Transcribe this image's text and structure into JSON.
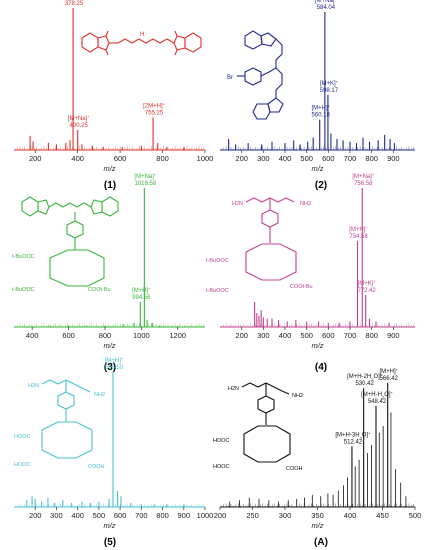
{
  "colors": {
    "p1": "#e0302a",
    "p2": "#1f2a8f",
    "p3": "#39b53a",
    "p4": "#c0418f",
    "p5": "#49c3cf",
    "pA": "#111111"
  },
  "chart_data": [
    {
      "type": "bar",
      "panel_label": "(1)",
      "xlabel": "m/z",
      "xlim": [
        100,
        1000
      ],
      "xticks": [
        "200",
        "400",
        "600",
        "800",
        "1000"
      ],
      "ylim": [
        0,
        100
      ],
      "structure_labels": [],
      "peaks": [
        {
          "x": 378.25,
          "y": 100,
          "label": [
            "[M+H]+",
            "378.25"
          ]
        },
        {
          "x": 400.25,
          "y": 14,
          "label": [
            "[M+Na]+",
            "400.25"
          ]
        },
        {
          "x": 755.25,
          "y": 23,
          "label": [
            "[2M+H]+",
            "755.25"
          ]
        },
        {
          "x": 176,
          "y": 10
        },
        {
          "x": 190,
          "y": 6
        },
        {
          "x": 262,
          "y": 5
        },
        {
          "x": 300,
          "y": 4
        },
        {
          "x": 344,
          "y": 5
        },
        {
          "x": 364,
          "y": 7
        },
        {
          "x": 420,
          "y": 4
        },
        {
          "x": 470,
          "y": 3
        },
        {
          "x": 520,
          "y": 2
        },
        {
          "x": 610,
          "y": 2
        },
        {
          "x": 700,
          "y": 3
        },
        {
          "x": 777,
          "y": 5
        },
        {
          "x": 820,
          "y": 2
        },
        {
          "x": 900,
          "y": 2
        }
      ]
    },
    {
      "type": "bar",
      "panel_label": "(2)",
      "xlabel": "m/z",
      "xlim": [
        100,
        1000
      ],
      "xticks": [
        "200",
        "300",
        "400",
        "500",
        "600",
        "700",
        "800",
        "900"
      ],
      "ylim": [
        0,
        100
      ],
      "structure_labels": [
        "Br"
      ],
      "peaks": [
        {
          "x": 584.04,
          "y": 100,
          "label": [
            "[M+Na]+",
            "584.04"
          ]
        },
        {
          "x": 560.18,
          "y": 22,
          "label": [
            "[M+H]+",
            "560.18"
          ]
        },
        {
          "x": 598.17,
          "y": 40,
          "label": [
            "[M+K]+",
            "598.17"
          ]
        },
        {
          "x": 140,
          "y": 8
        },
        {
          "x": 172,
          "y": 4
        },
        {
          "x": 230,
          "y": 5
        },
        {
          "x": 292,
          "y": 4
        },
        {
          "x": 340,
          "y": 6
        },
        {
          "x": 400,
          "y": 5
        },
        {
          "x": 440,
          "y": 7
        },
        {
          "x": 470,
          "y": 4
        },
        {
          "x": 505,
          "y": 6
        },
        {
          "x": 530,
          "y": 9
        },
        {
          "x": 612,
          "y": 12
        },
        {
          "x": 640,
          "y": 8
        },
        {
          "x": 668,
          "y": 7
        },
        {
          "x": 700,
          "y": 6
        },
        {
          "x": 730,
          "y": 5
        },
        {
          "x": 760,
          "y": 9
        },
        {
          "x": 790,
          "y": 6
        },
        {
          "x": 830,
          "y": 7
        },
        {
          "x": 860,
          "y": 11
        },
        {
          "x": 885,
          "y": 8
        },
        {
          "x": 905,
          "y": 5
        }
      ]
    },
    {
      "type": "bar",
      "panel_label": "(3)",
      "xlabel": "m/z",
      "xlim": [
        300,
        1350
      ],
      "xticks": [
        "400",
        "600",
        "800",
        "1000",
        "1200"
      ],
      "ylim": [
        0,
        100
      ],
      "structure_labels": [
        "t-BuOOC",
        "t-BuOOC",
        "COOt-Bu"
      ],
      "peaks": [
        {
          "x": 1016.58,
          "y": 100,
          "label": [
            "[M+Na]+",
            "1016.58"
          ]
        },
        {
          "x": 994.56,
          "y": 18,
          "label": [
            "[M+H]+",
            "994.56"
          ]
        },
        {
          "x": 1032,
          "y": 5
        },
        {
          "x": 1060,
          "y": 3
        },
        {
          "x": 960,
          "y": 3
        },
        {
          "x": 900,
          "y": 2
        },
        {
          "x": 800,
          "y": 1
        },
        {
          "x": 700,
          "y": 1
        },
        {
          "x": 600,
          "y": 1
        },
        {
          "x": 500,
          "y": 1
        },
        {
          "x": 1100,
          "y": 1
        }
      ]
    },
    {
      "type": "bar",
      "panel_label": "(4)",
      "xlabel": "m/z",
      "xlim": [
        100,
        1000
      ],
      "xticks": [
        "200",
        "300",
        "400",
        "500",
        "600",
        "700",
        "800",
        "900"
      ],
      "ylim": [
        0,
        100
      ],
      "structure_labels": [
        "H2N",
        "NH2",
        "t-BuOOC",
        "COOt-Bu",
        "t-BuOOC"
      ],
      "peaks": [
        {
          "x": 756.58,
          "y": 100,
          "label": [
            "[M+Na]+",
            "756.58"
          ]
        },
        {
          "x": 734.58,
          "y": 62,
          "label": [
            "[M+H]+",
            "734.58"
          ]
        },
        {
          "x": 772.42,
          "y": 23,
          "label": [
            "[M+K]+",
            "772.42"
          ]
        },
        {
          "x": 260,
          "y": 18
        },
        {
          "x": 270,
          "y": 10
        },
        {
          "x": 280,
          "y": 8
        },
        {
          "x": 290,
          "y": 12
        },
        {
          "x": 300,
          "y": 7
        },
        {
          "x": 318,
          "y": 6
        },
        {
          "x": 340,
          "y": 6
        },
        {
          "x": 370,
          "y": 5
        },
        {
          "x": 410,
          "y": 4
        },
        {
          "x": 450,
          "y": 5
        },
        {
          "x": 500,
          "y": 4
        },
        {
          "x": 555,
          "y": 4
        },
        {
          "x": 600,
          "y": 3
        },
        {
          "x": 650,
          "y": 3
        },
        {
          "x": 700,
          "y": 4
        },
        {
          "x": 790,
          "y": 6
        },
        {
          "x": 820,
          "y": 4
        },
        {
          "x": 880,
          "y": 3
        }
      ]
    },
    {
      "type": "bar",
      "panel_label": "(5)",
      "xlabel": "m/z",
      "xlim": [
        100,
        1000
      ],
      "xticks": [
        "200",
        "300",
        "400",
        "500",
        "600",
        "700",
        "800",
        "900",
        "1000"
      ],
      "ylim": [
        0,
        100
      ],
      "structure_labels": [
        "H2N",
        "NH2",
        "HOOC",
        "HOOC",
        "COOH"
      ],
      "peaks": [
        {
          "x": 566.5,
          "y": 100,
          "label": [
            "[M+H]+",
            "566.50"
          ]
        },
        {
          "x": 588,
          "y": 12
        },
        {
          "x": 604,
          "y": 8
        },
        {
          "x": 548,
          "y": 6
        },
        {
          "x": 160,
          "y": 5
        },
        {
          "x": 185,
          "y": 8
        },
        {
          "x": 200,
          "y": 6
        },
        {
          "x": 230,
          "y": 4
        },
        {
          "x": 260,
          "y": 7
        },
        {
          "x": 290,
          "y": 3
        },
        {
          "x": 330,
          "y": 5
        },
        {
          "x": 370,
          "y": 3
        },
        {
          "x": 420,
          "y": 4
        },
        {
          "x": 460,
          "y": 3
        },
        {
          "x": 500,
          "y": 4
        },
        {
          "x": 650,
          "y": 3
        },
        {
          "x": 700,
          "y": 2
        },
        {
          "x": 760,
          "y": 2
        },
        {
          "x": 820,
          "y": 2
        },
        {
          "x": 900,
          "y": 2
        }
      ]
    },
    {
      "type": "bar",
      "panel_label": "(A)",
      "xlabel": "m/z",
      "xlim": [
        200,
        500
      ],
      "xticks": [
        "200",
        "250",
        "300",
        "350",
        "400",
        "450",
        "500"
      ],
      "ylim": [
        0,
        100
      ],
      "structure_labels": [
        "H2N",
        "NH2",
        "HOOC",
        "HOOC",
        "COOH"
      ],
      "peaks": [
        {
          "x": 566.42,
          "y": 92,
          "label": [
            "[M+H]+",
            "566.42"
          ]
        },
        {
          "x": 548.42,
          "y": 75,
          "label": [
            "[M+H-H2O]+",
            "548.42"
          ]
        },
        {
          "x": 530.42,
          "y": 88,
          "label": [
            "[M+H-2H2O]+",
            "530.42"
          ]
        },
        {
          "x": 512.42,
          "y": 45,
          "label": [
            "[M+H-3H2O]+",
            "512.42"
          ]
        }
      ],
      "tick_positions": [
        200,
        250,
        300,
        350,
        400,
        450,
        500
      ]
    }
  ]
}
